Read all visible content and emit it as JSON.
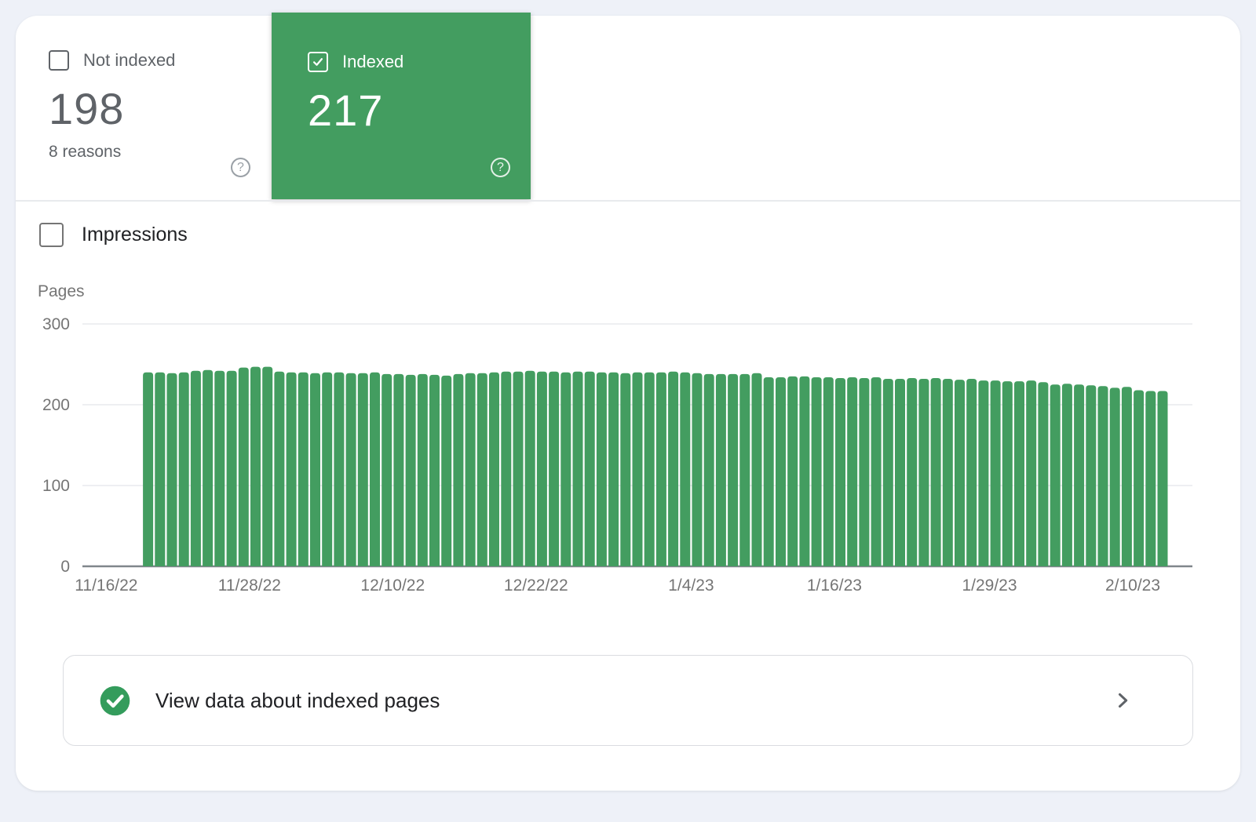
{
  "tiles": {
    "not_indexed": {
      "label": "Not indexed",
      "value": "198",
      "sublabel": "8 reasons",
      "checked": false,
      "help_glyph": "?"
    },
    "indexed": {
      "label": "Indexed",
      "value": "217",
      "checked": true,
      "help_glyph": "?"
    }
  },
  "controls": {
    "impressions_label": "Impressions"
  },
  "chart_data": {
    "type": "bar",
    "title": "",
    "xlabel": "",
    "ylabel": "Pages",
    "ylim": [
      0,
      300
    ],
    "y_ticks": [
      0,
      100,
      200,
      300
    ],
    "grid": true,
    "granularity": "daily",
    "x_tick_labels": [
      "11/16/22",
      "11/28/22",
      "12/10/22",
      "12/22/22",
      "1/4/23",
      "1/16/23",
      "1/29/23",
      "2/10/23"
    ],
    "x_tick_day_offsets": [
      -3,
      9,
      21,
      33,
      46,
      58,
      71,
      83
    ],
    "axis_day_range": [
      -5,
      88
    ],
    "first_bar_day": 0,
    "series": [
      {
        "name": "Indexed pages",
        "values": [
          240,
          240,
          239,
          240,
          242,
          243,
          242,
          242,
          246,
          247,
          247,
          241,
          240,
          240,
          239,
          240,
          240,
          239,
          239,
          240,
          238,
          238,
          237,
          238,
          237,
          236,
          238,
          239,
          239,
          240,
          241,
          241,
          242,
          241,
          241,
          240,
          241,
          241,
          240,
          240,
          239,
          240,
          240,
          240,
          241,
          240,
          239,
          238,
          238,
          238,
          238,
          239,
          234,
          234,
          235,
          235,
          234,
          234,
          233,
          234,
          233,
          234,
          232,
          232,
          233,
          232,
          233,
          232,
          231,
          232,
          230,
          230,
          229,
          229,
          230,
          228,
          225,
          226,
          225,
          224,
          223,
          221,
          222,
          218,
          217,
          217
        ]
      }
    ],
    "bar_color": "#439d60",
    "gridline_color": "#e8eaed",
    "zero_line_color": "#80868b",
    "tick_color": "#757575"
  },
  "footer": {
    "label": "View data about indexed pages"
  },
  "colors": {
    "accent_green": "#439d60",
    "check_green": "#349c5c",
    "page_bg": "#eef1f8",
    "text_dark": "#202124",
    "text_gray": "#5f6368"
  }
}
